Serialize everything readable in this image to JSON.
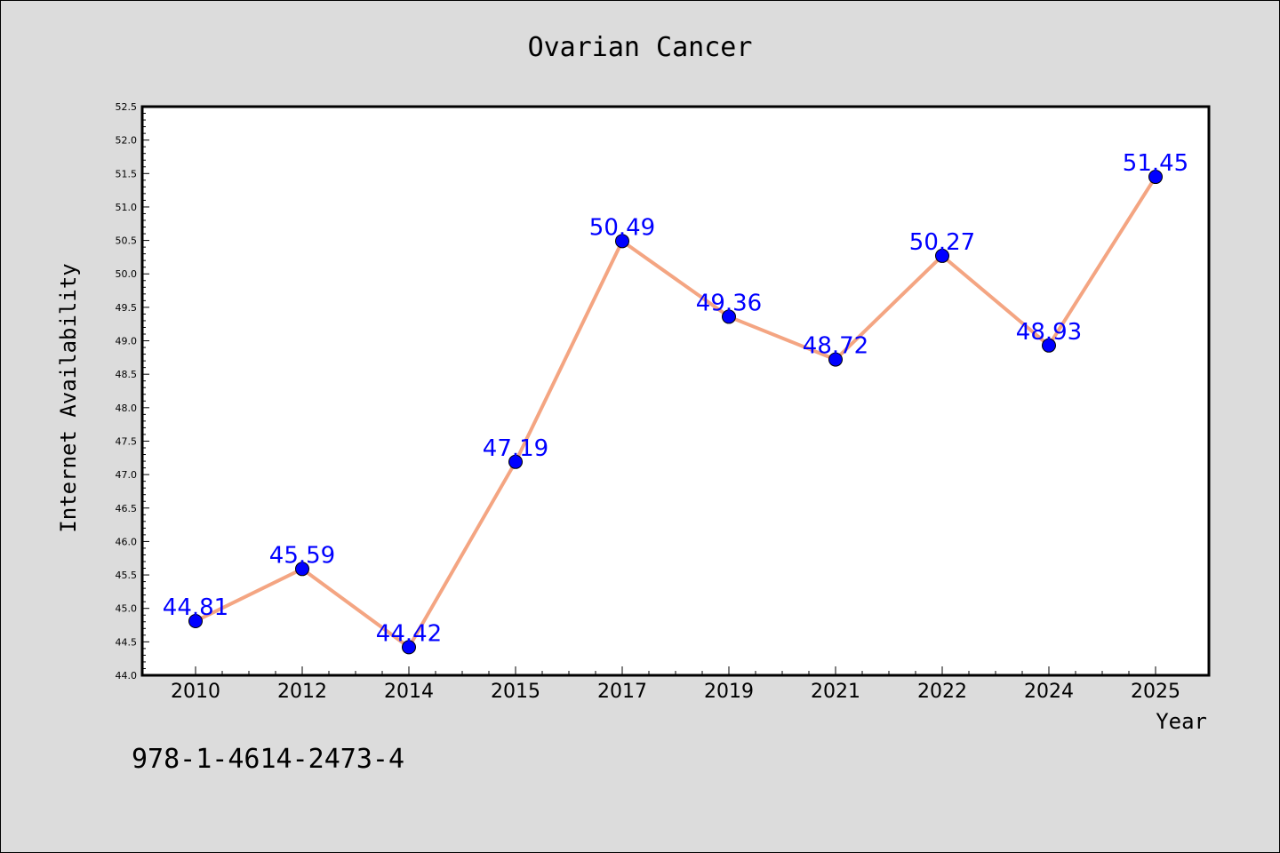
{
  "chart_data": {
    "type": "line",
    "title": "Ovarian Cancer",
    "xlabel": "Year",
    "ylabel": "Internet Availability",
    "categories": [
      "2010",
      "2012",
      "2014",
      "2015",
      "2017",
      "2019",
      "2021",
      "2022",
      "2024",
      "2025"
    ],
    "series": [
      {
        "values": [
          44.81,
          45.59,
          44.42,
          47.19,
          50.49,
          49.36,
          48.72,
          50.27,
          48.93,
          51.45
        ],
        "value_labels": [
          "44.81",
          "45.59",
          "44.42",
          "47.19",
          "50.49",
          "49.36",
          "48.72",
          "50.27",
          "48.93",
          "51.45"
        ]
      }
    ],
    "ylim": [
      44.0,
      52.5
    ],
    "yticks": [
      "44.0",
      "44.5",
      "45.0",
      "45.5",
      "46.0",
      "46.5",
      "47.0",
      "47.5",
      "48.0",
      "48.5",
      "49.0",
      "49.5",
      "50.0",
      "50.5",
      "51.0",
      "51.5",
      "52.0",
      "52.5"
    ],
    "grid": false,
    "colors": {
      "background": "#dcdcdc",
      "plot_background": "#ffffff",
      "line": "#f4a582",
      "marker": "#0000ff",
      "data_label": "#0000ff",
      "text": "#000000"
    }
  },
  "footer_note": "978-1-4614-2473-4"
}
